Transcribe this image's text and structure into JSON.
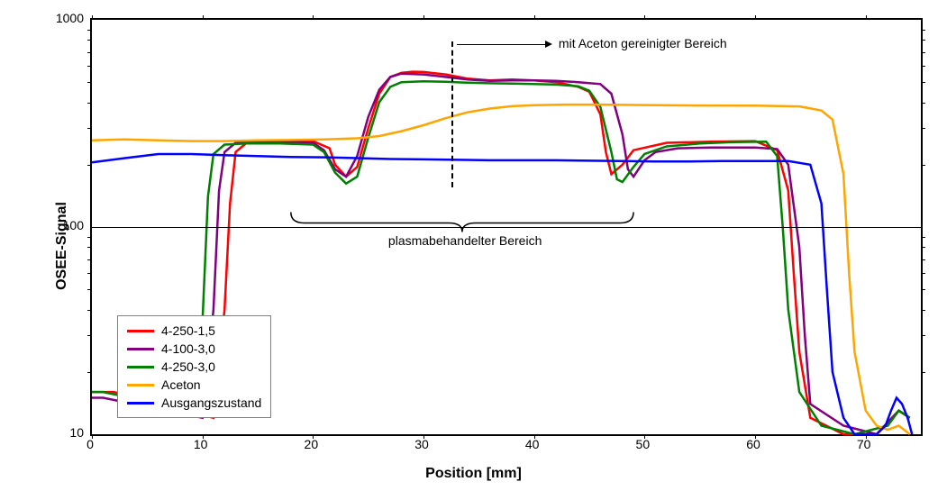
{
  "chart": {
    "type": "line",
    "background_color": "#ffffff",
    "grid_color": "#000000",
    "x_label": "Position [mm]",
    "y_label": "OSEE-Signal",
    "x_min": 0,
    "x_max": 75,
    "x_tick_step": 10,
    "x_ticks": [
      0,
      10,
      20,
      30,
      40,
      50,
      60,
      70
    ],
    "y_scale": "log",
    "y_min": 10,
    "y_max": 1000,
    "y_ticks": [
      10,
      100,
      1000
    ],
    "label_fontsize": 16,
    "tick_fontsize": 14,
    "line_width": 2.5,
    "annotation_top": "mit Aceton gereinigter Bereich",
    "annotation_mid": "plasmabehandelter Bereich",
    "dashed_line_x": 32.5,
    "arrow_x_start": 33,
    "arrow_x_end": 41,
    "brace_x_start": 18,
    "brace_x_end": 49,
    "series": [
      {
        "name": "4-250-1,5",
        "color": "#ff0000",
        "points": [
          [
            0,
            16
          ],
          [
            1,
            16
          ],
          [
            2,
            16
          ],
          [
            11,
            12
          ],
          [
            12,
            40
          ],
          [
            12.5,
            130
          ],
          [
            13,
            230
          ],
          [
            14,
            255
          ],
          [
            16,
            260
          ],
          [
            18,
            260
          ],
          [
            20,
            260
          ],
          [
            21.5,
            240
          ],
          [
            22,
            200
          ],
          [
            23,
            175
          ],
          [
            24,
            195
          ],
          [
            25,
            300
          ],
          [
            26,
            440
          ],
          [
            27,
            530
          ],
          [
            28,
            555
          ],
          [
            29,
            562
          ],
          [
            30,
            560
          ],
          [
            32,
            545
          ],
          [
            34,
            520
          ],
          [
            36,
            510
          ],
          [
            38,
            515
          ],
          [
            40,
            510
          ],
          [
            42,
            500
          ],
          [
            44,
            475
          ],
          [
            45,
            450
          ],
          [
            46,
            350
          ],
          [
            46.5,
            230
          ],
          [
            47,
            180
          ],
          [
            48,
            200
          ],
          [
            49,
            235
          ],
          [
            52,
            255
          ],
          [
            56,
            258
          ],
          [
            60,
            260
          ],
          [
            62,
            235
          ],
          [
            63,
            150
          ],
          [
            63.5,
            60
          ],
          [
            64,
            25
          ],
          [
            65,
            12
          ],
          [
            68,
            10
          ],
          [
            71,
            10
          ],
          [
            73,
            13
          ],
          [
            74,
            12
          ]
        ]
      },
      {
        "name": "4-100-3,0",
        "color": "#800080",
        "points": [
          [
            0,
            15
          ],
          [
            1,
            15
          ],
          [
            10,
            12
          ],
          [
            11,
            40
          ],
          [
            11.5,
            150
          ],
          [
            12,
            230
          ],
          [
            13,
            255
          ],
          [
            15,
            258
          ],
          [
            18,
            258
          ],
          [
            20,
            255
          ],
          [
            21,
            235
          ],
          [
            22,
            190
          ],
          [
            23,
            175
          ],
          [
            24,
            220
          ],
          [
            25,
            340
          ],
          [
            26,
            460
          ],
          [
            27,
            530
          ],
          [
            28,
            550
          ],
          [
            30,
            545
          ],
          [
            32,
            530
          ],
          [
            34,
            515
          ],
          [
            36,
            508
          ],
          [
            38,
            510
          ],
          [
            40,
            510
          ],
          [
            42,
            508
          ],
          [
            44,
            500
          ],
          [
            46,
            490
          ],
          [
            47,
            440
          ],
          [
            48,
            280
          ],
          [
            48.5,
            190
          ],
          [
            49,
            175
          ],
          [
            50,
            210
          ],
          [
            51,
            230
          ],
          [
            53,
            240
          ],
          [
            56,
            242
          ],
          [
            60,
            242
          ],
          [
            62,
            238
          ],
          [
            63,
            200
          ],
          [
            64,
            80
          ],
          [
            64.5,
            30
          ],
          [
            65,
            14
          ],
          [
            68,
            11
          ],
          [
            71,
            10
          ],
          [
            73,
            13
          ],
          [
            74,
            12
          ]
        ]
      },
      {
        "name": "4-250-3,0",
        "color": "#008000",
        "points": [
          [
            0,
            16
          ],
          [
            1,
            16
          ],
          [
            9,
            13
          ],
          [
            10,
            35
          ],
          [
            10.5,
            140
          ],
          [
            11,
            225
          ],
          [
            12,
            250
          ],
          [
            14,
            253
          ],
          [
            17,
            253
          ],
          [
            20,
            250
          ],
          [
            21,
            230
          ],
          [
            22,
            183
          ],
          [
            23,
            162
          ],
          [
            24,
            175
          ],
          [
            25,
            270
          ],
          [
            26,
            400
          ],
          [
            27,
            475
          ],
          [
            28,
            500
          ],
          [
            30,
            505
          ],
          [
            32,
            502
          ],
          [
            34,
            497
          ],
          [
            36,
            494
          ],
          [
            38,
            492
          ],
          [
            40,
            490
          ],
          [
            42,
            487
          ],
          [
            44,
            478
          ],
          [
            45,
            455
          ],
          [
            46,
            380
          ],
          [
            47,
            230
          ],
          [
            47.5,
            170
          ],
          [
            48,
            165
          ],
          [
            49,
            195
          ],
          [
            50,
            225
          ],
          [
            52,
            245
          ],
          [
            55,
            253
          ],
          [
            58,
            257
          ],
          [
            61,
            258
          ],
          [
            62,
            220
          ],
          [
            62.5,
            100
          ],
          [
            63,
            40
          ],
          [
            64,
            16
          ],
          [
            66,
            11
          ],
          [
            69,
            10
          ],
          [
            72,
            11
          ],
          [
            73,
            13
          ],
          [
            74,
            12
          ]
        ]
      },
      {
        "name": "Aceton",
        "color": "#ffa500",
        "points": [
          [
            0,
            262
          ],
          [
            3,
            265
          ],
          [
            6,
            262
          ],
          [
            9,
            260
          ],
          [
            12,
            260
          ],
          [
            15,
            262
          ],
          [
            18,
            263
          ],
          [
            21,
            265
          ],
          [
            24,
            268
          ],
          [
            26,
            275
          ],
          [
            28,
            290
          ],
          [
            30,
            310
          ],
          [
            32,
            335
          ],
          [
            34,
            358
          ],
          [
            36,
            373
          ],
          [
            38,
            383
          ],
          [
            40,
            387
          ],
          [
            43,
            390
          ],
          [
            46,
            390
          ],
          [
            50,
            388
          ],
          [
            55,
            386
          ],
          [
            60,
            385
          ],
          [
            64,
            382
          ],
          [
            66,
            365
          ],
          [
            67,
            330
          ],
          [
            68,
            180
          ],
          [
            68.5,
            60
          ],
          [
            69,
            25
          ],
          [
            70,
            13
          ],
          [
            71,
            11
          ],
          [
            72,
            10.5
          ],
          [
            73,
            11
          ],
          [
            74,
            10
          ]
        ]
      },
      {
        "name": "Ausgangszustand",
        "color": "#0000ff",
        "points": [
          [
            0,
            205
          ],
          [
            3,
            215
          ],
          [
            6,
            225
          ],
          [
            9,
            225
          ],
          [
            12,
            222
          ],
          [
            15,
            220
          ],
          [
            18,
            218
          ],
          [
            21,
            217
          ],
          [
            24,
            215
          ],
          [
            27,
            213
          ],
          [
            30,
            212
          ],
          [
            33,
            211
          ],
          [
            36,
            210
          ],
          [
            39,
            210
          ],
          [
            42,
            210
          ],
          [
            45,
            209
          ],
          [
            48,
            208
          ],
          [
            51,
            207
          ],
          [
            54,
            207
          ],
          [
            57,
            208
          ],
          [
            60,
            208
          ],
          [
            63,
            208
          ],
          [
            65,
            200
          ],
          [
            66,
            130
          ],
          [
            66.5,
            50
          ],
          [
            67,
            20
          ],
          [
            68,
            12
          ],
          [
            69,
            10
          ],
          [
            70,
            10
          ],
          [
            71,
            10
          ],
          [
            71.8,
            11
          ],
          [
            72.3,
            13
          ],
          [
            72.8,
            15
          ],
          [
            73.3,
            14
          ],
          [
            73.8,
            12
          ],
          [
            74.2,
            10
          ]
        ]
      }
    ]
  }
}
